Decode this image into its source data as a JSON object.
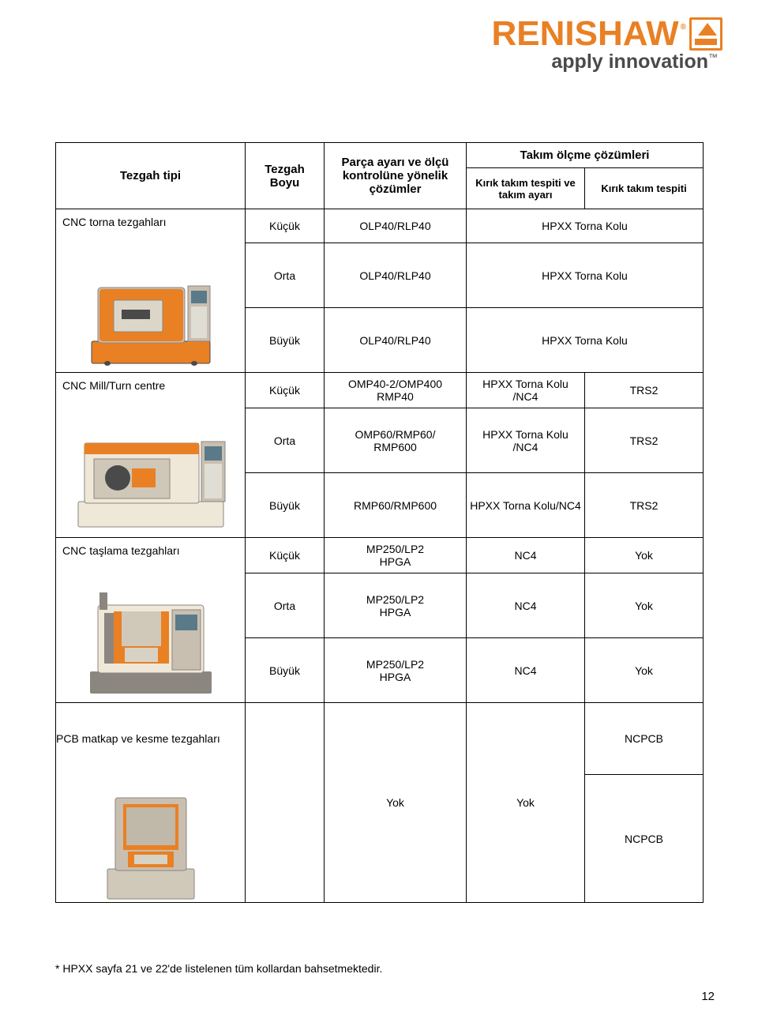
{
  "logo": {
    "brand": "RENISHAW",
    "tagline": "apply innovation"
  },
  "headers": {
    "col1": "Tezgah tipi",
    "col2": "Tezgah Boyu",
    "col3": "Parça ayarı ve ölçü kontrolüne yönelik çözümler",
    "takim_group": "Takım ölçme çözümleri",
    "col4": "Kırık takım tespiti ve takım ayarı",
    "col5": "Kırık takım tespiti"
  },
  "groups": [
    {
      "label": "CNC torna tezgahları",
      "machine_color": "#e98024",
      "machine_kind": "lathe",
      "rows": [
        {
          "size": "Küçük",
          "sol": "OLP40/RLP40",
          "t1": "HPXX Torna Kolu",
          "t2": "",
          "span": true
        },
        {
          "size": "Orta",
          "sol": "OLP40/RLP40",
          "t1": "HPXX Torna Kolu",
          "t2": "",
          "span": true
        },
        {
          "size": "Büyük",
          "sol": "OLP40/RLP40",
          "t1": "HPXX Torna Kolu",
          "t2": "",
          "span": true
        }
      ]
    },
    {
      "label": "CNC Mill/Turn centre",
      "machine_color": "#e98024",
      "machine_kind": "millturn",
      "rows": [
        {
          "size": "Küçük",
          "sol": "OMP40-2/OMP400\nRMP40",
          "t1": "HPXX Torna Kolu /NC4",
          "t2": "TRS2"
        },
        {
          "size": "Orta",
          "sol": "OMP60/RMP60/\nRMP600",
          "t1": "HPXX Torna Kolu /NC4",
          "t2": "TRS2"
        },
        {
          "size": "Büyük",
          "sol": "RMP60/RMP600",
          "t1": "HPXX Torna Kolu/NC4",
          "t2": "TRS2"
        }
      ]
    },
    {
      "label": "CNC taşlama tezgahları",
      "machine_color": "#e98024",
      "machine_kind": "grinder",
      "rows": [
        {
          "size": "Küçük",
          "sol": "MP250/LP2\nHPGA",
          "t1": "NC4",
          "t2": "Yok"
        },
        {
          "size": "Orta",
          "sol": "MP250/LP2\nHPGA",
          "t1": "NC4",
          "t2": "Yok"
        },
        {
          "size": "Büyük",
          "sol": "MP250/LP2\nHPGA",
          "t1": "NC4",
          "t2": "Yok"
        }
      ]
    },
    {
      "label": "PCB matkap ve kesme tezgahları",
      "machine_color": "#e98024",
      "machine_kind": "pcb",
      "rows": [
        {
          "size": "",
          "sol": "Yok",
          "t1": "Yok",
          "t2_top": "NCPCB",
          "t2": "NCPCB",
          "split_last": true,
          "size_label": "Yok",
          "solo": true
        }
      ],
      "is_pcb": true
    }
  ],
  "footnote": "* HPXX sayfa 21 ve 22'de listelenen tüm kollardan bahsetmektedir.",
  "page_number": "12"
}
